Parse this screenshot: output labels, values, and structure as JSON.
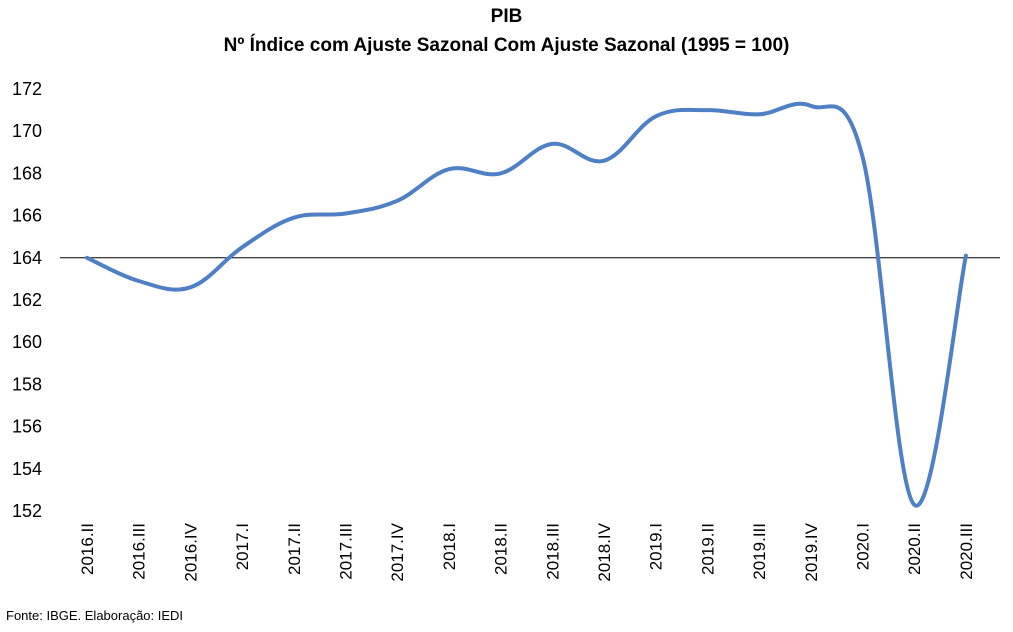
{
  "chart_data": {
    "type": "line",
    "title": "PIB",
    "subtitle": "Nº Índice com Ajuste Sazonal Com Ajuste Sazonal (1995 = 100)",
    "categories": [
      "2016.II",
      "2016.III",
      "2016.IV",
      "2017.I",
      "2017.II",
      "2017.III",
      "2017.IV",
      "2018.I",
      "2018.II",
      "2018.III",
      "2018.IV",
      "2019.I",
      "2019.II",
      "2019.III",
      "2019.IV",
      "2020.I",
      "2020.II",
      "2020.III"
    ],
    "series": [
      {
        "values": [
          164.0,
          162.9,
          162.6,
          164.5,
          165.9,
          166.1,
          166.7,
          168.2,
          168.0,
          169.4,
          168.6,
          170.7,
          171.0,
          170.8,
          171.2,
          168.8,
          152.3,
          164.1
        ],
        "color": "#4F7FC4"
      }
    ],
    "ylim": [
      152,
      172
    ],
    "yticks": [
      152,
      154,
      156,
      158,
      160,
      162,
      164,
      166,
      168,
      170,
      172
    ],
    "reference_line": 164,
    "grid": false,
    "source": "Fonte: IBGE. Elaboração: IEDI"
  }
}
